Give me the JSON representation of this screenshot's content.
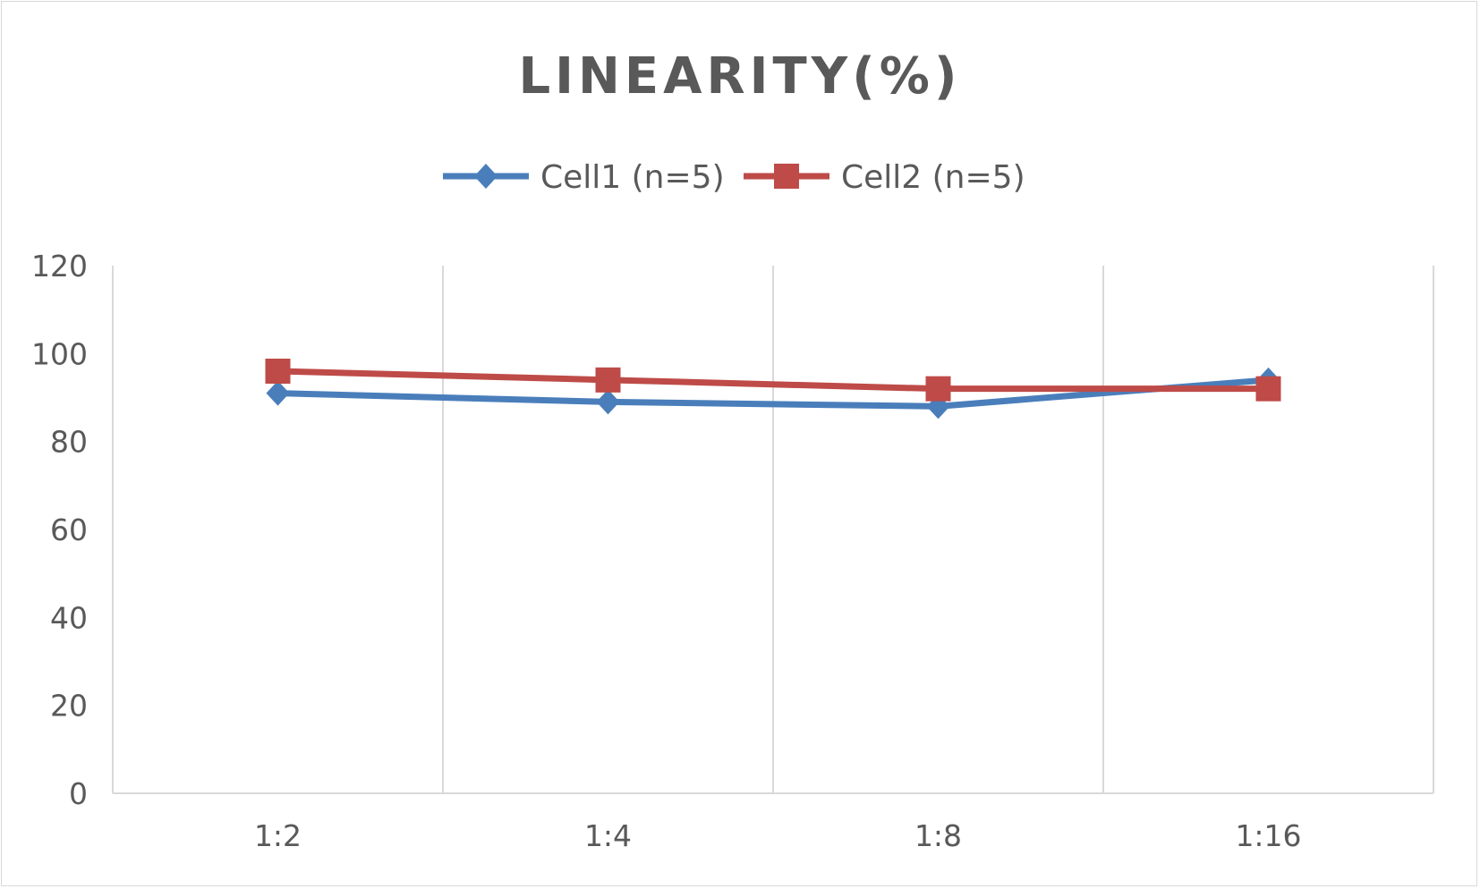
{
  "chart_data": {
    "type": "line",
    "title": "LINEARITY(%)",
    "xlabel": "",
    "ylabel": "",
    "categories": [
      "1:2",
      "1:4",
      "1:8",
      "1:16"
    ],
    "ylim": [
      0,
      120
    ],
    "yticks": [
      0,
      20,
      40,
      60,
      80,
      100,
      120
    ],
    "grid": "vertical",
    "legend": "top",
    "series": [
      {
        "name": "Cell1 (n=5)",
        "values": [
          91,
          89,
          88,
          94
        ],
        "color": "#4a7ebb",
        "marker": "diamond"
      },
      {
        "name": "Cell2 (n=5)",
        "values": [
          96,
          94,
          92,
          92
        ],
        "color": "#be4b48",
        "marker": "square"
      }
    ]
  }
}
